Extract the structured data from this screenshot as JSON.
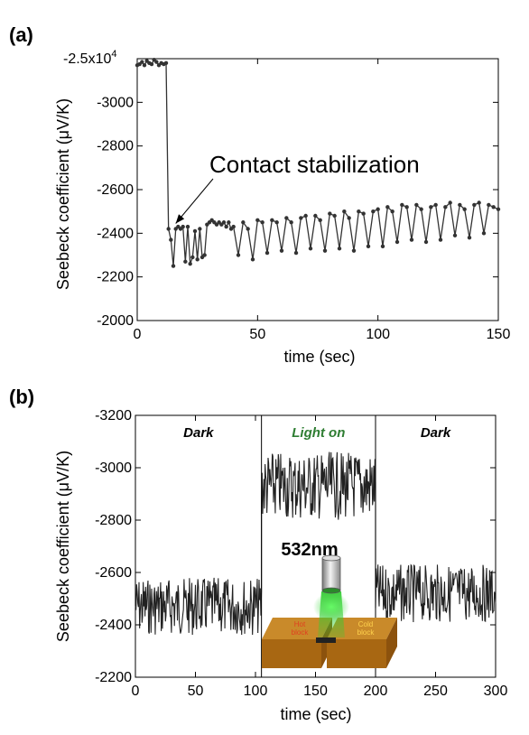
{
  "chart_data": [
    {
      "panel_label": "(a)",
      "type": "line",
      "xlabel": "time (sec)",
      "ylabel": "Seebeck coefficient (μV/K)",
      "xlim": [
        0,
        150
      ],
      "ylim": [
        -2000,
        -3200
      ],
      "y_axis_inverted": true,
      "x_ticks": [
        0,
        50,
        100,
        150
      ],
      "y_ticks": [
        -2000,
        -2200,
        -2400,
        -2600,
        -2800,
        -3000
      ],
      "y_top_label": "-2.5x10",
      "y_top_label_exp": "4",
      "grid": false,
      "series": [
        {
          "marker": "circle",
          "color": "#333333",
          "x": [
            0,
            1,
            2,
            3,
            4,
            5,
            6,
            7,
            8,
            9,
            10,
            11,
            12,
            13,
            14,
            15,
            16,
            17,
            18,
            19,
            20,
            21,
            22,
            23,
            24,
            25,
            26,
            27,
            28,
            29,
            30,
            31,
            32,
            33,
            34,
            35,
            36,
            37,
            38,
            39,
            40,
            42,
            44,
            46,
            48,
            50,
            52,
            54,
            56,
            58,
            60,
            62,
            64,
            66,
            68,
            70,
            72,
            74,
            76,
            78,
            80,
            82,
            84,
            86,
            88,
            90,
            92,
            94,
            96,
            98,
            100,
            102,
            104,
            106,
            108,
            110,
            112,
            114,
            116,
            118,
            120,
            122,
            124,
            126,
            128,
            130,
            132,
            134,
            136,
            138,
            140,
            142,
            144,
            146,
            148,
            150
          ],
          "values": [
            -3170,
            -3175,
            -3185,
            -3170,
            -3190,
            -3180,
            -3175,
            -3195,
            -3185,
            -3170,
            -3180,
            -3175,
            -3180,
            -2420,
            -2370,
            -2250,
            -2420,
            -2430,
            -2420,
            -2430,
            -2270,
            -2430,
            -2260,
            -2290,
            -2410,
            -2280,
            -2420,
            -2290,
            -2300,
            -2440,
            -2450,
            -2460,
            -2450,
            -2440,
            -2450,
            -2440,
            -2450,
            -2430,
            -2450,
            -2420,
            -2430,
            -2300,
            -2450,
            -2420,
            -2280,
            -2460,
            -2450,
            -2310,
            -2460,
            -2450,
            -2320,
            -2470,
            -2450,
            -2310,
            -2470,
            -2480,
            -2330,
            -2480,
            -2460,
            -2320,
            -2490,
            -2480,
            -2330,
            -2500,
            -2470,
            -2320,
            -2500,
            -2490,
            -2340,
            -2500,
            -2510,
            -2340,
            -2520,
            -2500,
            -2360,
            -2530,
            -2520,
            -2370,
            -2530,
            -2510,
            -2360,
            -2520,
            -2530,
            -2370,
            -2520,
            -2540,
            -2390,
            -2530,
            -2510,
            -2380,
            -2530,
            -2540,
            -2400,
            -2530,
            -2520,
            -2510
          ]
        }
      ],
      "annotations": [
        {
          "text": "Contact stabilization",
          "points_to": [
            13,
            -2420
          ]
        }
      ]
    },
    {
      "panel_label": "(b)",
      "type": "line",
      "xlabel": "time (sec)",
      "ylabel": "Seebeck coefficient (μV/K)",
      "xlim": [
        0,
        300
      ],
      "ylim": [
        -2200,
        -3200
      ],
      "y_axis_inverted": true,
      "x_ticks": [
        0,
        50,
        100,
        150,
        200,
        250,
        300
      ],
      "y_ticks": [
        -2200,
        -2400,
        -2600,
        -2800,
        -3000,
        -3200
      ],
      "grid": false,
      "series": [
        {
          "color": "#222222",
          "segments": [
            {
              "x_start": 0,
              "x_end": 105,
              "mean": -2470,
              "amplitude": 110
            },
            {
              "x_start": 105,
              "x_end": 200,
              "mean": -2930,
              "amplitude": 130
            },
            {
              "x_start": 200,
              "x_end": 300,
              "mean": -2520,
              "amplitude": 110
            }
          ]
        }
      ],
      "regions": [
        {
          "label": "Dark",
          "x_start": 0,
          "x_end": 105,
          "label_color": "#000000"
        },
        {
          "label": "Light on",
          "x_start": 105,
          "x_end": 200,
          "label_color": "#2e7d32"
        },
        {
          "label": "Dark",
          "x_start": 200,
          "x_end": 300,
          "label_color": "#000000"
        }
      ],
      "inset": {
        "laser_label": "532nm",
        "laser_color": "#33cc33",
        "block_color": "#c07a1a",
        "hot_block_label": "Hot\nblock",
        "cold_block_label": "Cold\nblock",
        "hot_label_color": "#e04020",
        "cold_label_color": "#ffd24d"
      }
    }
  ]
}
